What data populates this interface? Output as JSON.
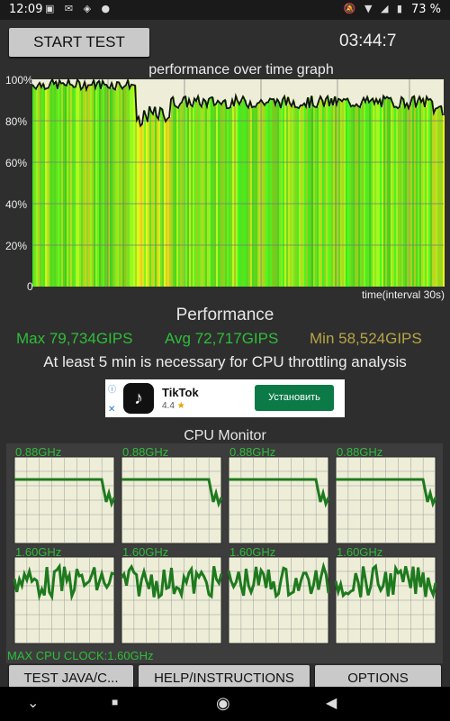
{
  "status_bar": {
    "time": "12:09",
    "battery": "73 %"
  },
  "toolbar": {
    "start_label": "START TEST",
    "timer": "03:44:7"
  },
  "graph": {
    "title": "performance over time graph",
    "y_ticks": [
      "100%",
      "80%",
      "60%",
      "40%",
      "20%",
      "0"
    ],
    "x_label": "time(interval 30s)"
  },
  "performance": {
    "title": "Performance",
    "max": "Max 79,734GIPS",
    "avg": "Avg 72,717GIPS",
    "min": "Min 58,524GIPS",
    "note": "At least 5 min is necessary for CPU throttling analysis"
  },
  "ad": {
    "app_name": "TikTok",
    "rating": "4.4",
    "install_label": "Установить"
  },
  "cpu_monitor": {
    "title": "CPU Monitor",
    "cores": [
      {
        "freq": "0.88GHz"
      },
      {
        "freq": "0.88GHz"
      },
      {
        "freq": "0.88GHz"
      },
      {
        "freq": "0.88GHz"
      },
      {
        "freq": "1.60GHz"
      },
      {
        "freq": "1.60GHz"
      },
      {
        "freq": "1.60GHz"
      },
      {
        "freq": "1.60GHz"
      }
    ],
    "max_clock": "MAX CPU CLOCK:1.60GHz"
  },
  "bottom_buttons": {
    "java": "TEST JAVA/C...",
    "help": "HELP/INSTRUCTIONS",
    "options": "OPTIONS"
  },
  "colors": {
    "accent_green": "#2fbd3a",
    "min_color": "#b8a545",
    "graph_bg": "#eeeed8"
  }
}
